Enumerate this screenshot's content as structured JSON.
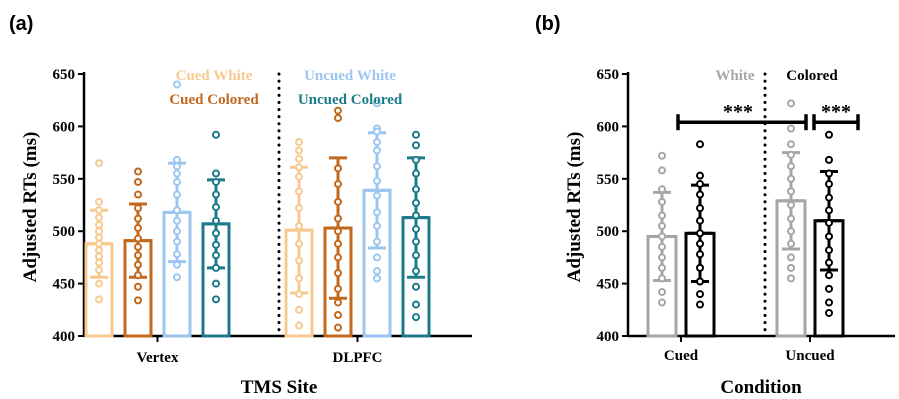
{
  "colors": {
    "cued_white": "#f7c98f",
    "cued_colored": "#c1681d",
    "uncued_white": "#9cc6f0",
    "uncued_colored": "#1c7b8a",
    "white": "#a6a6a6",
    "colored": "#000000"
  },
  "chart_data": [
    {
      "panel_label": "(a)",
      "type": "bar",
      "xlabel": "TMS Site",
      "ylabel": "Adjusted RTs (ms)",
      "ylim": [
        400,
        650
      ],
      "yticks": [
        400,
        450,
        500,
        550,
        600,
        650
      ],
      "categories": [
        "Vertex",
        "DLPFC"
      ],
      "legend": [
        {
          "name": "Cued White",
          "color": "#f7c98f"
        },
        {
          "name": "Uncued White",
          "color": "#9cc6f0"
        },
        {
          "name": "Cued Colored",
          "color": "#c1681d"
        },
        {
          "name": "Uncued Colored",
          "color": "#1c7b8a"
        }
      ],
      "series": [
        {
          "name": "Cued White",
          "color": "#f7c98f",
          "values": [
            488,
            501
          ],
          "sd": [
            32,
            60
          ],
          "points": [
            [
              565,
              528,
              520,
              513,
              506,
              500,
              494,
              488,
              482,
              476,
              470,
              463,
              450,
              435
            ],
            [
              585,
              577,
              569,
              561,
              552,
              538,
              522,
              505,
              488,
              472,
              455,
              440,
              425,
              410
            ]
          ]
        },
        {
          "name": "Cued Colored",
          "color": "#c1681d",
          "values": [
            491,
            503
          ],
          "sd": [
            35,
            67
          ],
          "points": [
            [
              557,
              547,
              535,
              522,
              512,
              503,
              493,
              485,
              477,
              468,
              458,
              447,
              434
            ],
            [
              615,
              608,
              560,
              545,
              528,
              512,
              500,
              488,
              475,
              460,
              445,
              432,
              420,
              408
            ]
          ]
        },
        {
          "name": "Uncued White",
          "color": "#9cc6f0",
          "values": [
            518,
            539
          ],
          "sd": [
            47,
            55
          ],
          "points": [
            [
              640,
              568,
              562,
              555,
              547,
              535,
              520,
              510,
              500,
              490,
              478,
              468,
              456
            ],
            [
              622,
              598,
              595,
              585,
              577,
              562,
              548,
              534,
              518,
              505,
              490,
              475,
              462,
              455
            ]
          ]
        },
        {
          "name": "Uncued Colored",
          "color": "#1c7b8a",
          "values": [
            507,
            513
          ],
          "sd": [
            42,
            57
          ],
          "points": [
            [
              592,
              555,
              547,
              535,
              523,
              510,
              498,
              487,
              477,
              465,
              450,
              435
            ],
            [
              592,
              582,
              568,
              555,
              540,
              527,
              515,
              502,
              490,
              477,
              462,
              447,
              430,
              418
            ]
          ]
        }
      ]
    },
    {
      "panel_label": "(b)",
      "type": "bar",
      "xlabel": "Condition",
      "ylabel": "Adjusted RTs (ms)",
      "ylim": [
        400,
        650
      ],
      "yticks": [
        400,
        450,
        500,
        550,
        600,
        650
      ],
      "categories": [
        "Cued",
        "Uncued"
      ],
      "legend": [
        {
          "name": "White",
          "color": "#a6a6a6"
        },
        {
          "name": "Colored",
          "color": "#000000"
        }
      ],
      "series": [
        {
          "name": "White",
          "color": "#a6a6a6",
          "values": [
            495,
            529
          ],
          "sd": [
            42,
            46
          ],
          "points": [
            [
              572,
              558,
              540,
              528,
              515,
              505,
              495,
              485,
              475,
              465,
              455,
              442,
              432
            ],
            [
              622,
              598,
              583,
              573,
              562,
              550,
              538,
              525,
              512,
              500,
              488,
              475,
              465,
              455
            ]
          ]
        },
        {
          "name": "Colored",
          "color": "#000000",
          "values": [
            498,
            510
          ],
          "sd": [
            46,
            47
          ],
          "points": [
            [
              583,
              553,
              545,
              535,
              522,
              510,
              498,
              488,
              478,
              465,
              452,
              440,
              430
            ],
            [
              592,
              568,
              555,
              545,
              532,
              520,
              508,
              495,
              482,
              470,
              458,
              445,
              432,
              422
            ]
          ]
        }
      ],
      "significance": [
        {
          "from": "Cued",
          "to": "Uncued",
          "label": "***",
          "y": 604
        },
        {
          "from": "Uncued White",
          "to": "Uncued Colored",
          "label": "***",
          "y": 604
        }
      ]
    }
  ]
}
